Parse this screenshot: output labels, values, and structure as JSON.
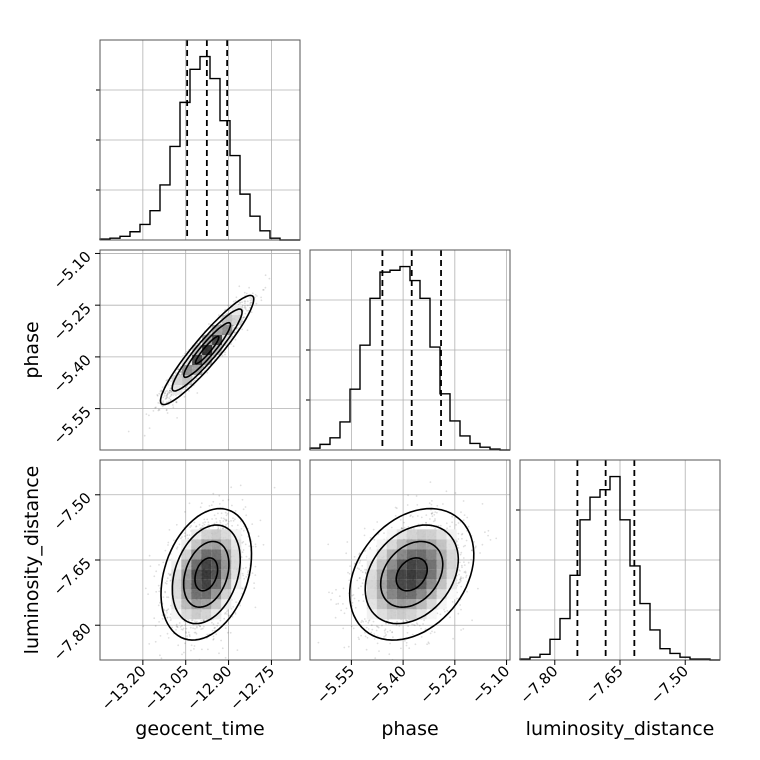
{
  "chart_data": {
    "type": "corner",
    "parameters": [
      "geocent_time",
      "phase",
      "luminosity_distance"
    ],
    "labels": {
      "geocent_time": "geocent_time",
      "phase": "phase",
      "luminosity_distance": "luminosity_distance"
    },
    "ranges": {
      "geocent_time": [
        -13.35,
        -12.65
      ],
      "phase": [
        -5.67,
        -5.09
      ],
      "luminosity_distance": [
        -7.88,
        -7.42
      ]
    },
    "ticks": {
      "geocent_time": [
        -13.2,
        -13.05,
        -12.9,
        -12.75
      ],
      "phase": [
        -5.55,
        -5.4,
        -5.25,
        -5.1
      ],
      "luminosity_distance": [
        -7.8,
        -7.65,
        -7.5
      ]
    },
    "tick_labels": {
      "geocent_time": [
        "−13.20",
        "−13.05",
        "−12.90",
        "−12.75"
      ],
      "phase": [
        "−5.55",
        "−5.40",
        "−5.25",
        "−5.10"
      ],
      "luminosity_distance": [
        "−7.80",
        "−7.65",
        "−7.50"
      ]
    },
    "quantiles": {
      "geocent_time": [
        -13.045,
        -12.976,
        -12.905
      ],
      "phase": [
        -5.46,
        -5.375,
        -5.29
      ],
      "luminosity_distance": [
        -7.748,
        -7.683,
        -7.617
      ]
    },
    "histograms": {
      "geocent_time": {
        "edges": [
          -13.35,
          -13.315,
          -13.28,
          -13.245,
          -13.21,
          -13.175,
          -13.14,
          -13.105,
          -13.07,
          -13.035,
          -13.0,
          -12.965,
          -12.93,
          -12.895,
          -12.86,
          -12.825,
          -12.79,
          -12.755,
          -12.72,
          -12.685,
          -12.65
        ],
        "counts": [
          1,
          2,
          4,
          9,
          17,
          32,
          60,
          102,
          150,
          186,
          200,
          176,
          130,
          92,
          50,
          26,
          10,
          2,
          0,
          0
        ]
      },
      "phase": {
        "edges": [
          -5.67,
          -5.641,
          -5.612,
          -5.583,
          -5.554,
          -5.525,
          -5.496,
          -5.467,
          -5.438,
          -5.409,
          -5.38,
          -5.351,
          -5.322,
          -5.293,
          -5.264,
          -5.235,
          -5.206,
          -5.177,
          -5.148,
          -5.119,
          -5.09
        ],
        "counts": [
          2,
          6,
          13,
          30,
          65,
          112,
          162,
          190,
          192,
          196,
          181,
          162,
          110,
          60,
          31,
          15,
          7,
          3,
          1,
          0
        ]
      },
      "luminosity_distance": {
        "edges": [
          -7.88,
          -7.857,
          -7.834,
          -7.811,
          -7.788,
          -7.765,
          -7.742,
          -7.719,
          -7.696,
          -7.673,
          -7.65,
          -7.627,
          -7.604,
          -7.581,
          -7.558,
          -7.535,
          -7.512,
          -7.489,
          -7.466,
          -7.443,
          -7.42
        ],
        "counts": [
          1,
          3,
          6,
          22,
          44,
          90,
          149,
          173,
          181,
          195,
          149,
          100,
          60,
          32,
          12,
          7,
          3,
          1,
          1,
          0
        ]
      }
    },
    "samples_2d": {
      "phase_vs_geocent_time": {
        "x_mean": -12.975,
        "y_mean": -5.38,
        "x_sd": 0.068,
        "y_sd": 0.066,
        "corr": 0.93
      },
      "luminosity_distance_vs_geocent_time": {
        "x_mean": -12.978,
        "y_mean": -7.683,
        "x_sd": 0.066,
        "y_sd": 0.063,
        "corr": 0.3
      },
      "luminosity_distance_vs_phase": {
        "x_mean": -5.375,
        "y_mean": -7.683,
        "x_sd": 0.075,
        "y_sd": 0.063,
        "corr": 0.3
      }
    },
    "grid": true
  }
}
